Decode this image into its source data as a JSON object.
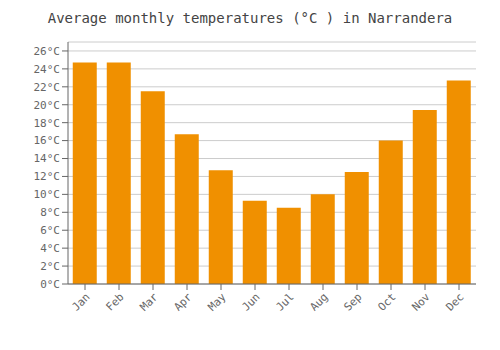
{
  "chart_data": {
    "type": "bar",
    "title": "Average monthly temperatures (°C ) in Narrandera",
    "categories": [
      "Jan",
      "Feb",
      "Mar",
      "Apr",
      "May",
      "Jun",
      "Jul",
      "Aug",
      "Sep",
      "Oct",
      "Nov",
      "Dec"
    ],
    "values": [
      24.7,
      24.7,
      21.5,
      16.7,
      12.7,
      9.3,
      8.5,
      10.0,
      12.5,
      16.0,
      19.4,
      22.7
    ],
    "color": "#F09000",
    "ylim": [
      0,
      27
    ],
    "yticks": [
      {
        "value": 0,
        "label": "0°C"
      },
      {
        "value": 2,
        "label": "2°C"
      },
      {
        "value": 4,
        "label": "4°C"
      },
      {
        "value": 6,
        "label": "6°C"
      },
      {
        "value": 8,
        "label": "8°C"
      },
      {
        "value": 10,
        "label": "10°C"
      },
      {
        "value": 12,
        "label": "12°C"
      },
      {
        "value": 14,
        "label": "14°C"
      },
      {
        "value": 16,
        "label": "16°C"
      },
      {
        "value": 18,
        "label": "18°C"
      },
      {
        "value": 20,
        "label": "20°C"
      },
      {
        "value": 22,
        "label": "22°C"
      },
      {
        "value": 24,
        "label": "24°C"
      },
      {
        "value": 26,
        "label": "26°C"
      }
    ],
    "grid": true
  }
}
